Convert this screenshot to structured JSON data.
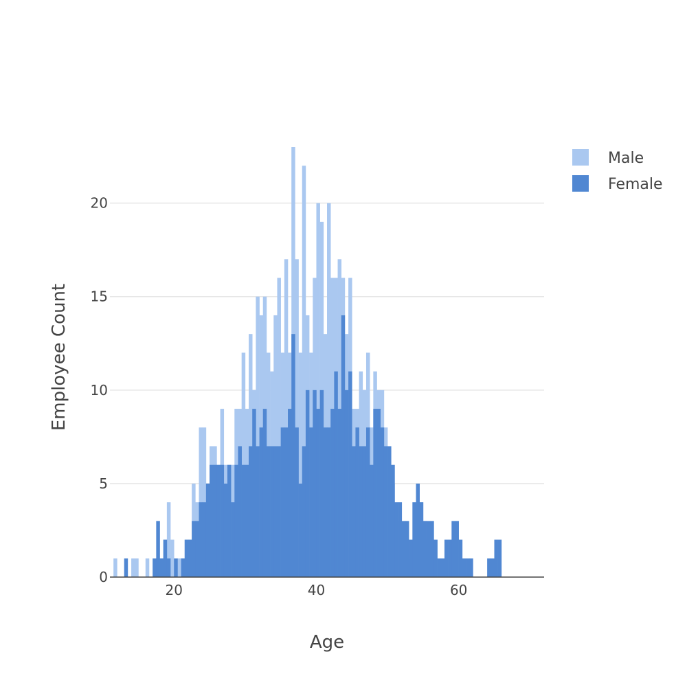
{
  "chart_data": {
    "type": "bar",
    "mode": "overlay",
    "title": "",
    "xlabel": "Age",
    "ylabel": "Employee Count",
    "xlim": [
      11,
      72
    ],
    "ylim": [
      0,
      23
    ],
    "bin_start": 11,
    "bin_width": 0.5,
    "x_ticks": [
      20,
      40,
      60
    ],
    "y_ticks": [
      0,
      5,
      10,
      15,
      20
    ],
    "grid": true,
    "legend_position": "top-right",
    "series": [
      {
        "name": "Male",
        "color": "#aac8f0",
        "values": [
          0,
          1,
          0,
          0,
          0,
          0,
          1,
          1,
          0,
          0,
          1,
          0,
          0,
          1,
          1,
          2,
          4,
          2,
          0,
          1,
          1,
          2,
          2,
          5,
          4,
          8,
          8,
          5,
          7,
          7,
          6,
          9,
          6,
          6,
          6,
          9,
          9,
          12,
          9,
          13,
          10,
          15,
          14,
          15,
          12,
          11,
          14,
          16,
          12,
          17,
          12,
          23,
          17,
          12,
          22,
          14,
          12,
          16,
          20,
          19,
          13,
          20,
          16,
          16,
          17,
          16,
          13,
          16,
          9,
          9,
          11,
          10,
          12,
          8,
          11,
          10,
          10,
          8,
          7,
          5,
          3,
          3,
          2,
          1,
          1,
          2,
          4,
          4,
          3,
          2,
          2,
          1,
          0,
          0,
          0,
          0,
          0,
          0,
          0,
          0,
          0,
          0,
          0,
          0,
          0,
          0,
          0,
          0,
          0,
          0,
          0,
          0,
          0,
          0,
          0,
          0,
          0,
          0,
          0,
          0,
          0,
          0
        ]
      },
      {
        "name": "Female",
        "color": "#5087d2",
        "values": [
          0,
          0,
          0,
          0,
          1,
          0,
          0,
          0,
          0,
          0,
          0,
          0,
          1,
          3,
          1,
          2,
          1,
          0,
          1,
          0,
          1,
          2,
          2,
          3,
          3,
          4,
          4,
          5,
          6,
          6,
          6,
          6,
          5,
          6,
          4,
          6,
          7,
          6,
          6,
          7,
          9,
          7,
          8,
          9,
          7,
          7,
          7,
          7,
          8,
          8,
          9,
          13,
          8,
          5,
          7,
          10,
          8,
          10,
          9,
          10,
          8,
          8,
          9,
          11,
          9,
          14,
          10,
          11,
          7,
          8,
          7,
          7,
          8,
          6,
          9,
          9,
          8,
          7,
          7,
          6,
          4,
          4,
          3,
          3,
          2,
          4,
          5,
          4,
          3,
          3,
          3,
          2,
          1,
          1,
          2,
          2,
          3,
          3,
          2,
          1,
          1,
          1,
          0,
          0,
          0,
          0,
          1,
          1,
          2,
          2,
          0,
          0,
          0,
          0,
          0,
          0,
          0,
          0,
          0,
          0,
          0,
          0
        ]
      }
    ]
  }
}
